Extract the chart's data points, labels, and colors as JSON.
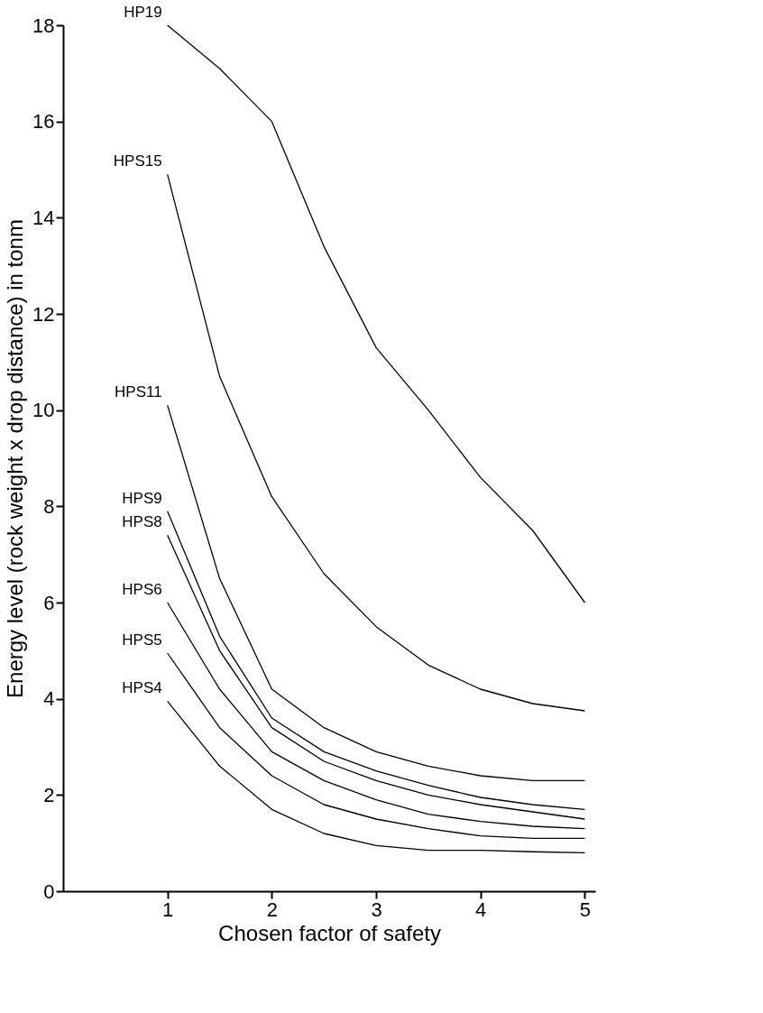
{
  "chart_data": {
    "type": "line",
    "xlabel": "Chosen factor of safety",
    "ylabel": "Energy level (rock weight x drop distance) in tonm",
    "xlim": [
      0,
      5.1
    ],
    "xticks": [
      1,
      2,
      3,
      4,
      5
    ],
    "ylim": [
      0,
      18
    ],
    "yticks": [
      0,
      2,
      4,
      6,
      8,
      10,
      12,
      14,
      16,
      18
    ],
    "grid": false,
    "legend": false,
    "line_style": "solid",
    "x": [
      1,
      1.5,
      2,
      2.5,
      3,
      3.5,
      4,
      4.5,
      5
    ],
    "series": [
      {
        "name": "HP19",
        "color": "#000000",
        "values": [
          18,
          17.1,
          16,
          13.4,
          11.3,
          10,
          8.6,
          7.5,
          6
        ]
      },
      {
        "name": "HPS15",
        "color": "#000000",
        "values": [
          14.9,
          10.7,
          8.2,
          6.6,
          5.5,
          4.7,
          4.2,
          3.9,
          3.75
        ]
      },
      {
        "name": "HPS11",
        "color": "#000000",
        "values": [
          10.1,
          6.5,
          4.2,
          3.4,
          2.9,
          2.6,
          2.4,
          2.3,
          2.3
        ]
      },
      {
        "name": "HPS9",
        "color": "#000000",
        "values": [
          7.9,
          5.3,
          3.6,
          2.9,
          2.5,
          2.2,
          1.95,
          1.8,
          1.7
        ]
      },
      {
        "name": "HPS8",
        "color": "#000000",
        "values": [
          7.4,
          5,
          3.4,
          2.7,
          2.3,
          2,
          1.8,
          1.65,
          1.5
        ]
      },
      {
        "name": "HPS6",
        "color": "#000000",
        "values": [
          6,
          4.2,
          2.9,
          2.3,
          1.9,
          1.6,
          1.45,
          1.35,
          1.3
        ]
      },
      {
        "name": "HPS5",
        "color": "#000000",
        "values": [
          4.95,
          3.4,
          2.4,
          1.8,
          1.5,
          1.3,
          1.15,
          1.1,
          1.1
        ]
      },
      {
        "name": "HPS4",
        "color": "#000000",
        "values": [
          3.95,
          2.6,
          1.7,
          1.2,
          0.95,
          0.85,
          0.85,
          0.82,
          0.8
        ]
      }
    ]
  }
}
